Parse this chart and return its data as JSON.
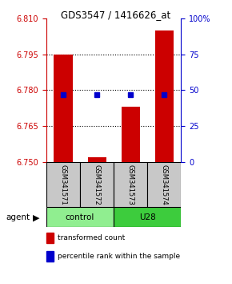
{
  "title": "GDS3547 / 1416626_at",
  "samples": [
    "GSM341571",
    "GSM341572",
    "GSM341573",
    "GSM341574"
  ],
  "groups": [
    {
      "label": "control",
      "samples": [
        0,
        1
      ],
      "color": "#90EE90"
    },
    {
      "label": "U28",
      "samples": [
        2,
        3
      ],
      "color": "#3DCC3D"
    }
  ],
  "bar_values": [
    6.795,
    6.752,
    6.773,
    6.805
  ],
  "bar_base": 6.75,
  "bar_color": "#CC0000",
  "blue_values": [
    6.778,
    6.778,
    6.778,
    6.778
  ],
  "blue_color": "#0000CC",
  "ylim_left": [
    6.75,
    6.81
  ],
  "yticks_left": [
    6.75,
    6.765,
    6.78,
    6.795,
    6.81
  ],
  "ylim_right": [
    0,
    100
  ],
  "yticks_right": [
    0,
    25,
    50,
    75,
    100
  ],
  "ytick_labels_right": [
    "0",
    "25",
    "50",
    "75",
    "100%"
  ],
  "grid_values": [
    6.765,
    6.78,
    6.795
  ],
  "legend_items": [
    {
      "label": "transformed count",
      "color": "#CC0000"
    },
    {
      "label": "percentile rank within the sample",
      "color": "#0000CC"
    }
  ],
  "agent_label": "agent",
  "bar_width": 0.55,
  "sample_box_color": "#C8C8C8",
  "title_fontsize": 8.5,
  "tick_fontsize": 7,
  "legend_fontsize": 6.5
}
